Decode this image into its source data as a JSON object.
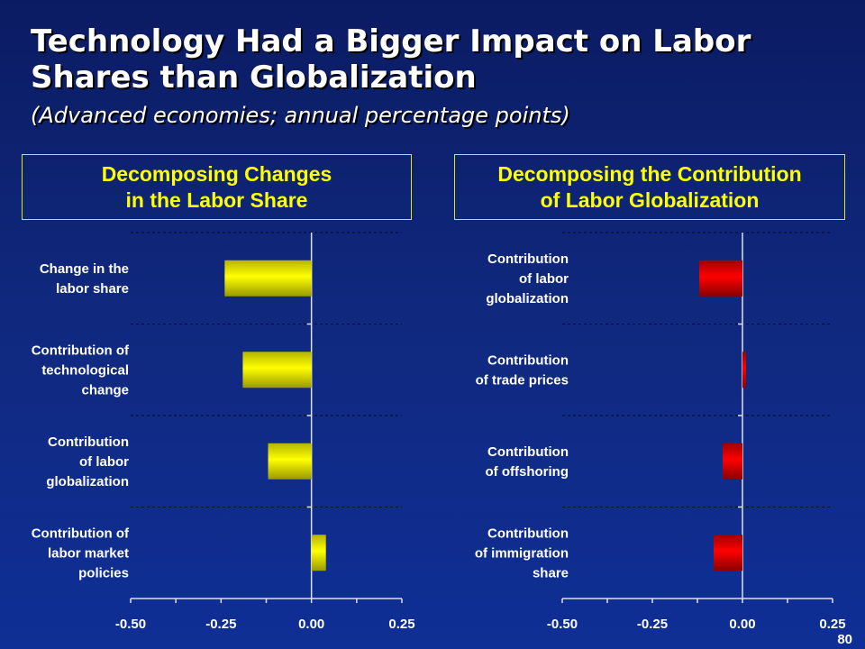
{
  "title": "Technology Had a Bigger Impact on Labor Shares than Globalization",
  "subtitle": "(Advanced economies; annual percentage points)",
  "page_number": "80",
  "colors": {
    "yellow_bar": "#ffff00",
    "red_bar": "#ff0000",
    "box_border": "#e6e600",
    "label_text": "#ffffff"
  },
  "chart_data": [
    {
      "type": "bar",
      "orientation": "horizontal",
      "title": "Decomposing Changes\nin the Labor Share",
      "categories": [
        "Change in the\nlabor share",
        "Contribution of\ntechnological\nchange",
        "Contribution\nof labor\nglobalization",
        "Contribution of\nlabor market\npolicies"
      ],
      "values": [
        -0.24,
        -0.19,
        -0.12,
        0.04
      ],
      "xlim": [
        -0.5,
        0.25
      ],
      "ticks": [
        "-0.50",
        "-0.25",
        "0.00",
        "0.25"
      ],
      "tick_values": [
        -0.5,
        -0.25,
        0,
        0.25
      ],
      "color": "yellow"
    },
    {
      "type": "bar",
      "orientation": "horizontal",
      "title": "Decomposing the Contribution\nof Labor Globalization",
      "categories": [
        "Contribution\nof labor\nglobalization",
        "Contribution\nof trade prices",
        "Contribution\nof offshoring",
        "Contribution\nof immigration\nshare"
      ],
      "values": [
        -0.12,
        0.01,
        -0.055,
        -0.08
      ],
      "xlim": [
        -0.5,
        0.25
      ],
      "ticks": [
        "-0.50",
        "-0.25",
        "0.00",
        "0.25"
      ],
      "tick_values": [
        -0.5,
        -0.25,
        0,
        0.25
      ],
      "color": "red"
    }
  ]
}
